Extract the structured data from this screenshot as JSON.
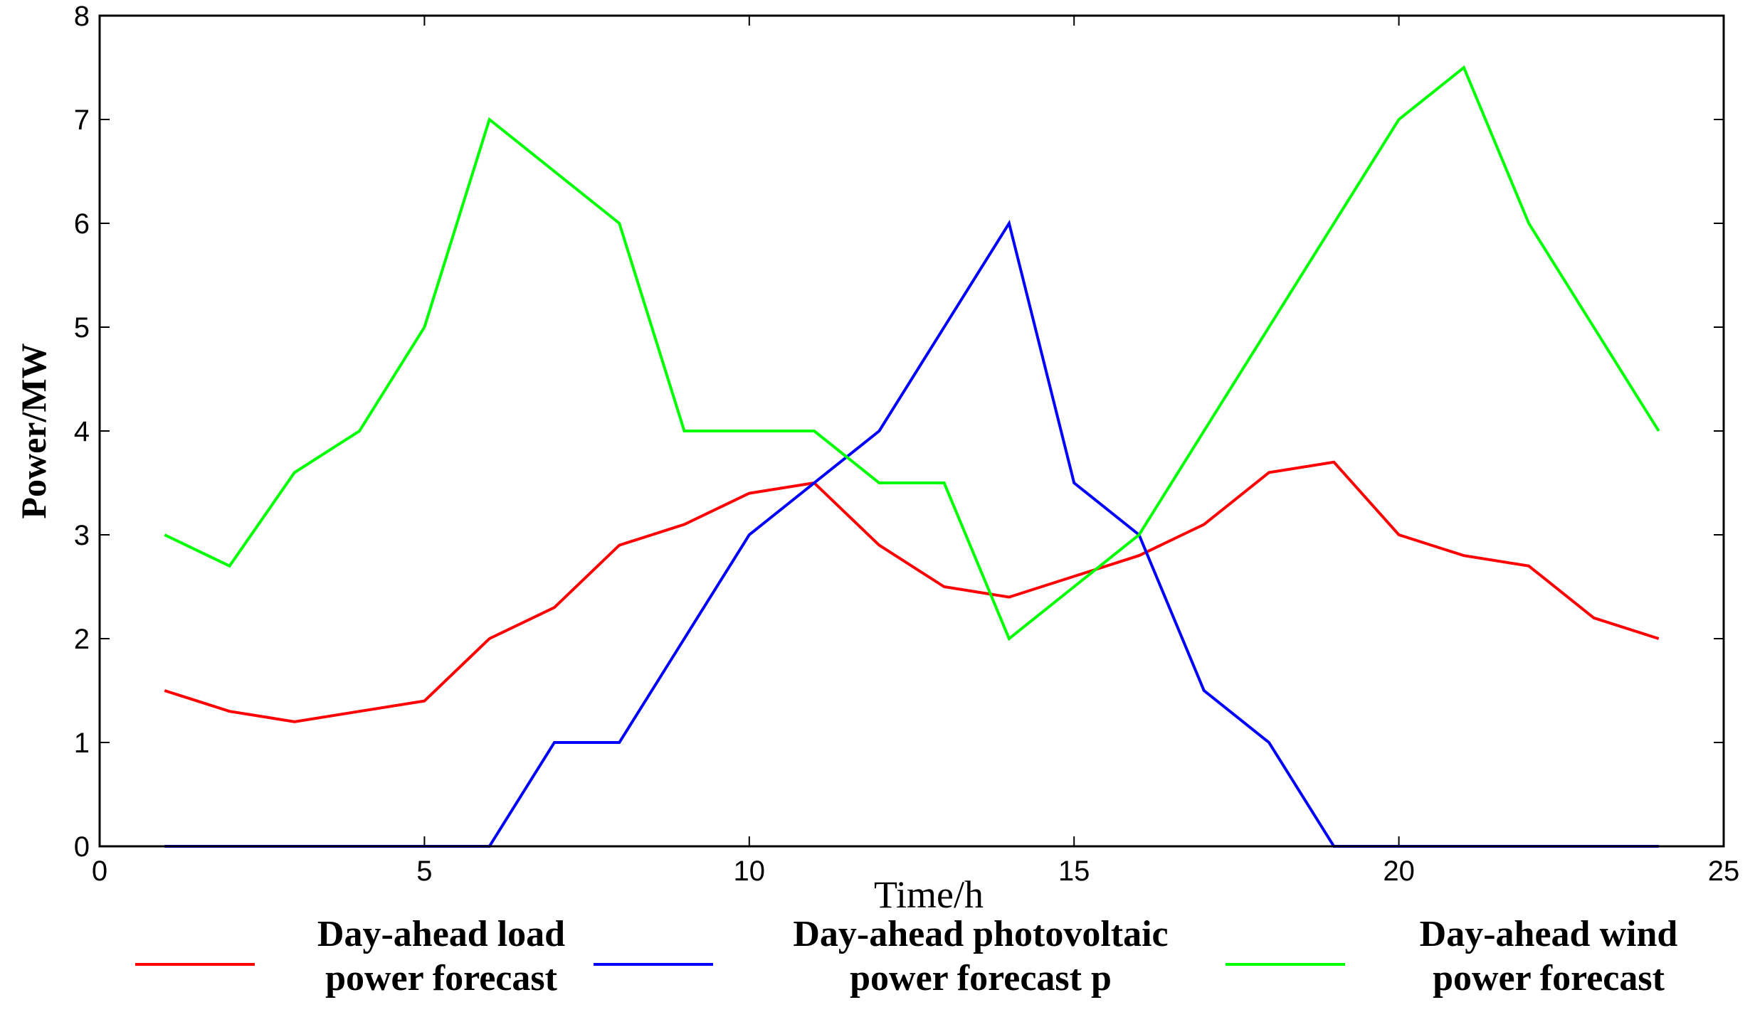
{
  "chart_data": {
    "type": "line",
    "title": "",
    "xlabel": "Time/h",
    "ylabel": "Power/MW",
    "xlim": [
      0,
      25
    ],
    "ylim": [
      0,
      8
    ],
    "xticks": [
      0,
      5,
      10,
      15,
      20,
      25
    ],
    "yticks": [
      0,
      1,
      2,
      3,
      4,
      5,
      6,
      7,
      8
    ],
    "xtick_labels": [
      "0",
      "5",
      "10",
      "15",
      "20",
      "25"
    ],
    "ytick_labels": [
      "0",
      "1",
      "2",
      "3",
      "4",
      "5",
      "6",
      "7",
      "8"
    ],
    "grid": false,
    "legend_position": "bottom",
    "x": [
      1,
      2,
      3,
      4,
      5,
      6,
      7,
      8,
      9,
      10,
      11,
      12,
      13,
      14,
      15,
      16,
      17,
      18,
      19,
      20,
      21,
      22,
      23,
      24
    ],
    "series": [
      {
        "name": "Day-ahead load power forecast",
        "legend_lines": [
          "Day-ahead load",
          "power forecast"
        ],
        "color": "#ff0000",
        "values": [
          1.5,
          1.3,
          1.2,
          1.3,
          1.4,
          2.0,
          2.3,
          2.9,
          3.1,
          3.4,
          3.5,
          2.9,
          2.5,
          2.4,
          2.6,
          2.8,
          3.1,
          3.6,
          3.7,
          3.0,
          2.8,
          2.7,
          2.2,
          2.0
        ]
      },
      {
        "name": "Day-ahead photovoltaic power forecast p",
        "legend_lines": [
          "Day-ahead photovoltaic",
          "power forecast p"
        ],
        "color": "#0000ff",
        "values": [
          0,
          0,
          0,
          0,
          0,
          0,
          1,
          1,
          2,
          3,
          3.5,
          4,
          5,
          6,
          3.5,
          3,
          1.5,
          1,
          0,
          0,
          0,
          0,
          0,
          0
        ]
      },
      {
        "name": "Day-ahead wind power forecast",
        "legend_lines": [
          "Day-ahead wind",
          "power forecast"
        ],
        "color": "#00ff00",
        "values": [
          3,
          2.7,
          3.6,
          4,
          5,
          7,
          6.5,
          6,
          4,
          4,
          4,
          3.5,
          3.5,
          2,
          2.5,
          3,
          4,
          5,
          6,
          7,
          7.5,
          6,
          5,
          4
        ]
      }
    ]
  }
}
